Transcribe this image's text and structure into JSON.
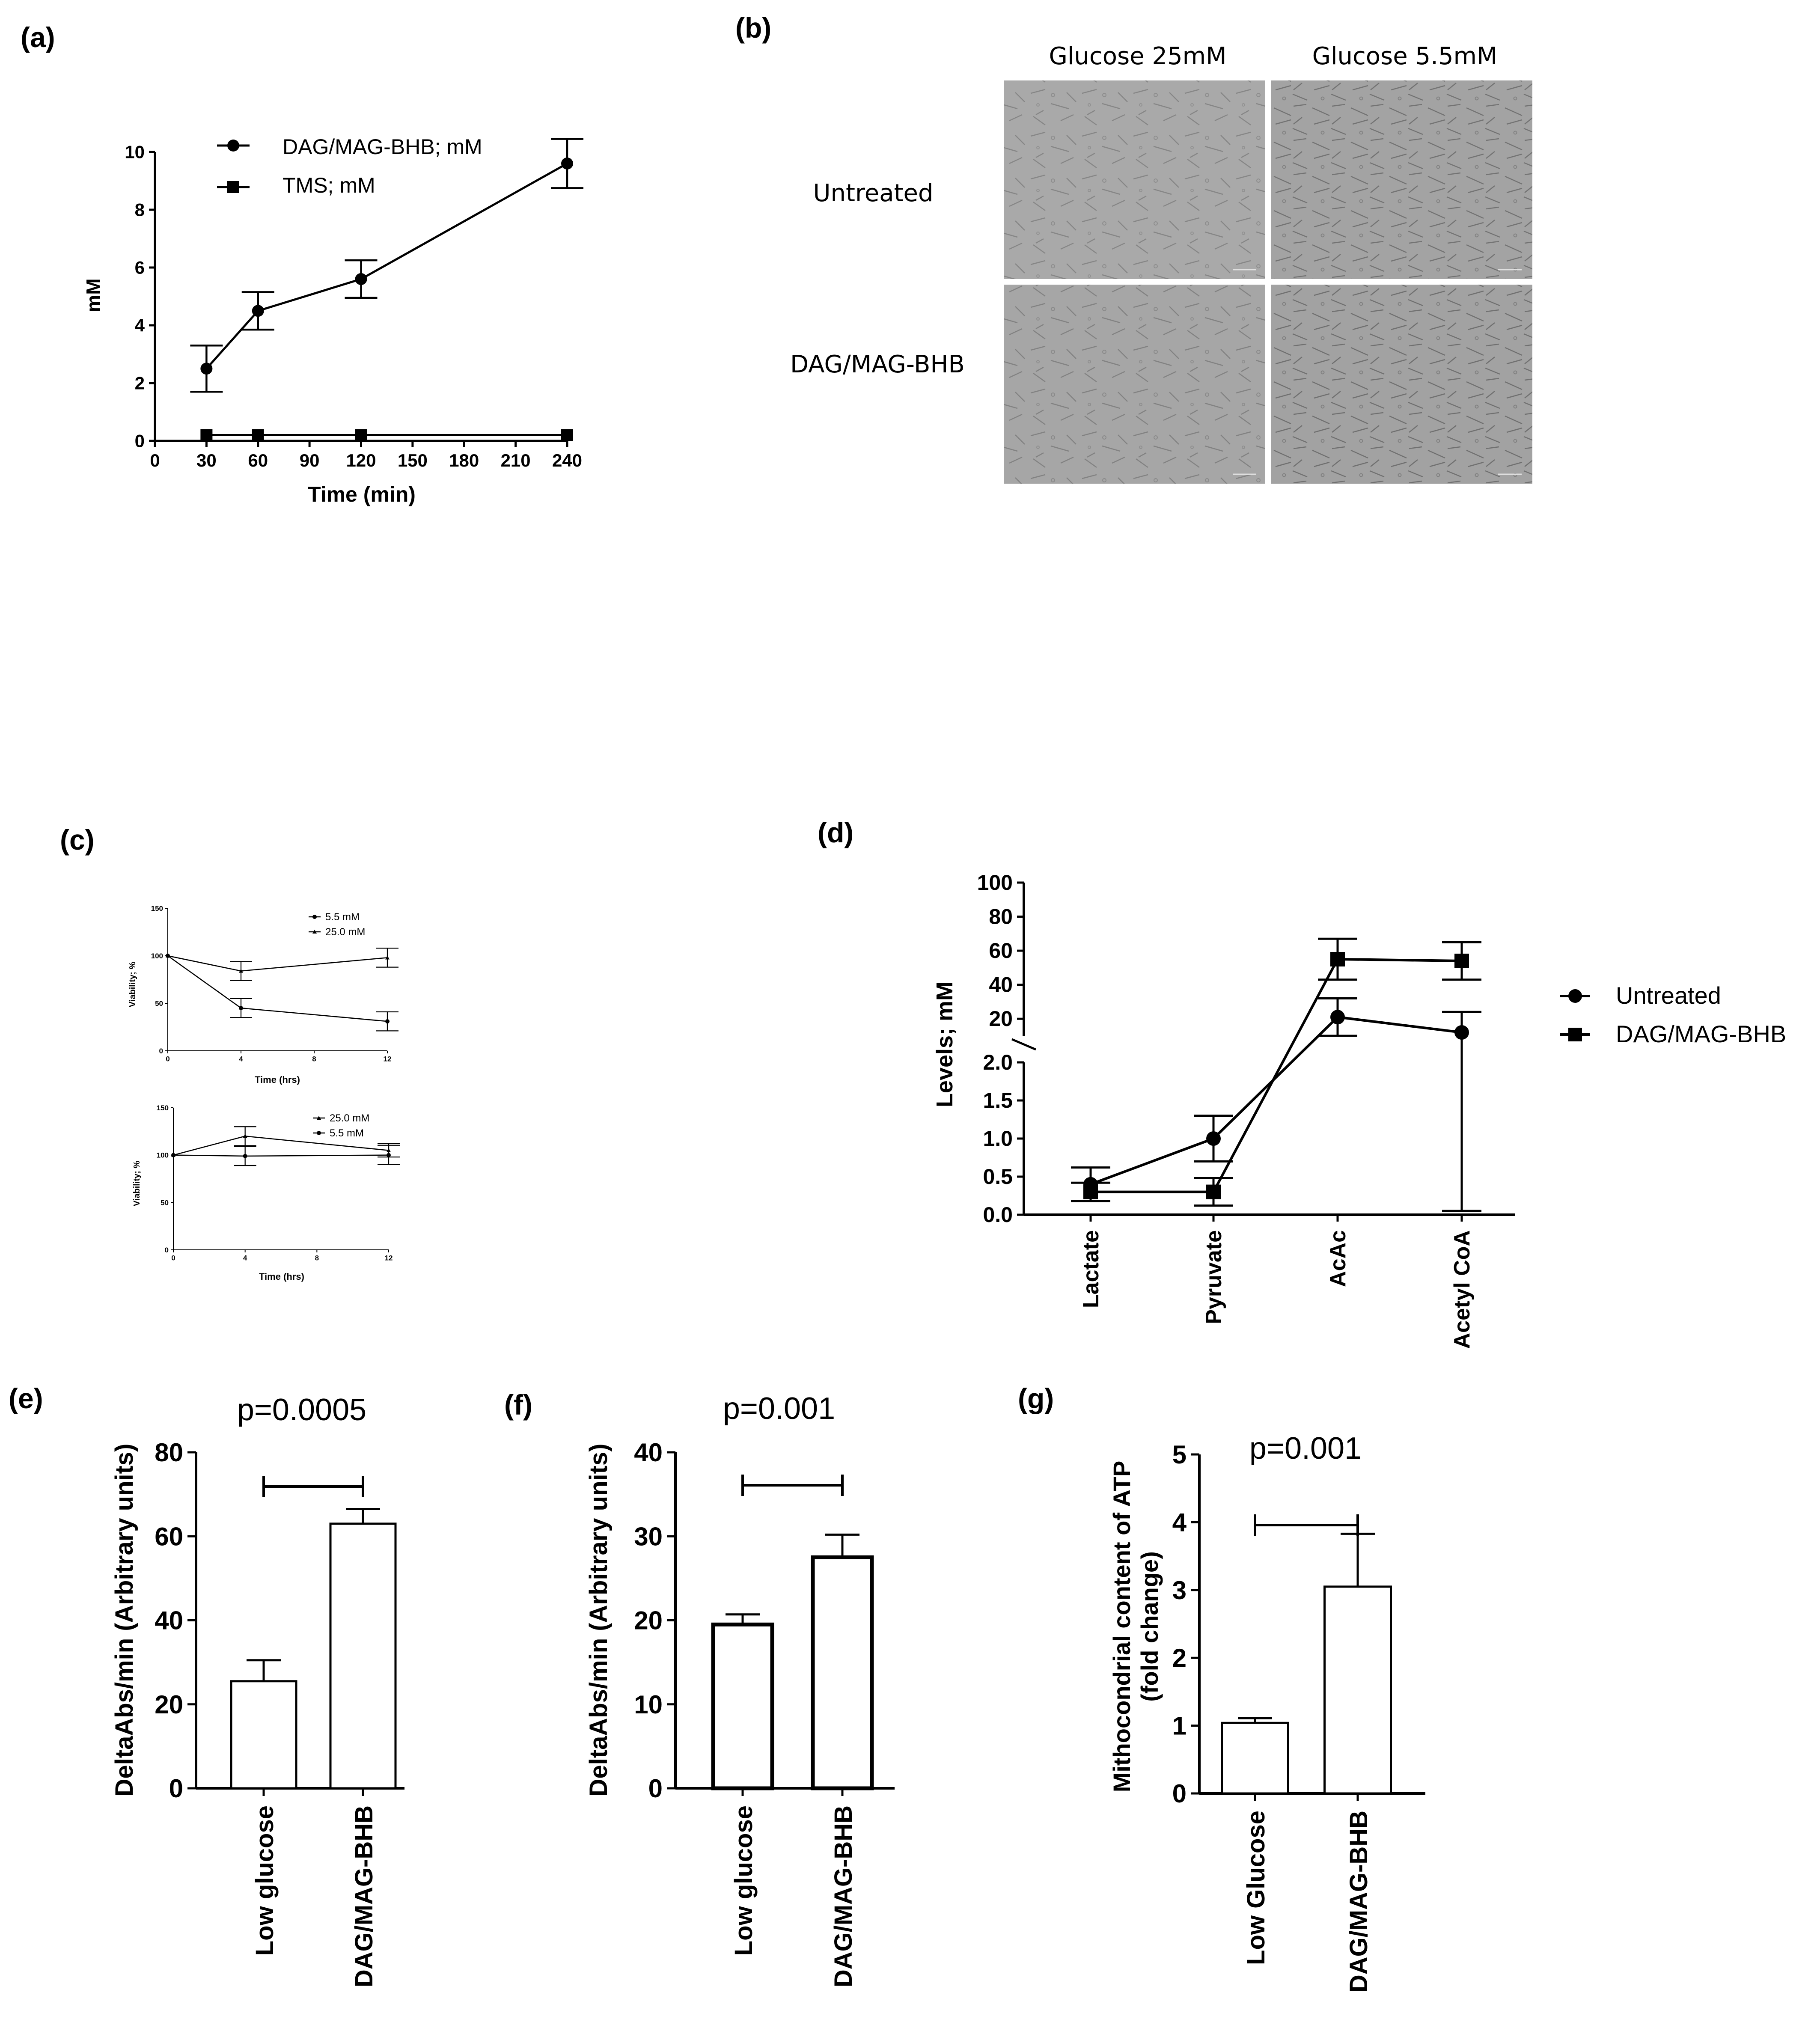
{
  "panel_labels": {
    "a": "(a)",
    "b": "(b)",
    "c": "(c)",
    "d": "(d)",
    "e": "(e)",
    "f": "(f)",
    "g": "(g)"
  },
  "micrographs": {
    "columns": [
      "Glucose 25mM",
      "Glucose 5.5mM"
    ],
    "rows": [
      "Untreated",
      "DAG/MAG-BHB"
    ]
  },
  "chart_data": [
    {
      "id": "a",
      "type": "line",
      "ylabel": "mM",
      "xlabel": "Time (min)",
      "xlim": [
        0,
        240
      ],
      "ylim": [
        0,
        10
      ],
      "x_ticks": [
        0,
        30,
        60,
        90,
        120,
        150,
        180,
        210,
        240
      ],
      "y_ticks": [
        0,
        2,
        4,
        6,
        8,
        10
      ],
      "legend_position": "top-left",
      "series": [
        {
          "name": "DAG/MAG-BHB; mM",
          "marker": "circle",
          "x": [
            30,
            60,
            120,
            240
          ],
          "y": [
            2.5,
            4.5,
            5.6,
            9.6
          ],
          "err": [
            0.8,
            0.65,
            0.65,
            0.85
          ]
        },
        {
          "name": "TMS; mM",
          "marker": "square",
          "x": [
            30,
            60,
            120,
            240
          ],
          "y": [
            0.2,
            0.2,
            0.2,
            0.2
          ],
          "err": [
            0,
            0,
            0,
            0
          ]
        }
      ]
    },
    {
      "id": "c_top",
      "type": "line",
      "ylabel": "Viability; %",
      "xlabel": "Time (hrs)",
      "xlim": [
        0,
        12
      ],
      "ylim": [
        0,
        150
      ],
      "x_ticks": [
        0,
        4,
        8,
        12
      ],
      "y_ticks": [
        0,
        50,
        100,
        150
      ],
      "legend_position": "top-right",
      "series": [
        {
          "name": "5.5  mM",
          "marker": "circle",
          "x": [
            0,
            4,
            12
          ],
          "y": [
            100,
            45,
            31
          ],
          "err": [
            0,
            10,
            10
          ]
        },
        {
          "name": "25.0 mM",
          "marker": "triangle",
          "x": [
            0,
            4,
            12
          ],
          "y": [
            100,
            84,
            98
          ],
          "err": [
            0,
            10,
            10
          ]
        }
      ]
    },
    {
      "id": "c_bottom",
      "type": "line",
      "ylabel": "Viability; %",
      "xlabel": "Time (hrs)",
      "xlim": [
        0,
        12
      ],
      "ylim": [
        0,
        150
      ],
      "x_ticks": [
        0,
        4,
        8,
        12
      ],
      "y_ticks": [
        0,
        50,
        100,
        150
      ],
      "legend_position": "top-right",
      "series": [
        {
          "name": "25.0 mM",
          "marker": "triangle",
          "x": [
            0,
            4,
            12
          ],
          "y": [
            100,
            120,
            105
          ],
          "err": [
            0,
            10,
            7
          ]
        },
        {
          "name": "5.5  mM",
          "marker": "circle",
          "x": [
            0,
            4,
            12
          ],
          "y": [
            100,
            99,
            100
          ],
          "err": [
            0,
            10,
            10
          ]
        }
      ]
    },
    {
      "id": "d",
      "type": "line",
      "ylabel": "Levels; mM",
      "categories": [
        "Lactate",
        "Pyruvate",
        "AcAc",
        "Acetyl CoA"
      ],
      "y_axis_break": true,
      "lower_ylim": [
        0,
        2
      ],
      "lower_ticks": [
        0.0,
        0.5,
        1.0,
        1.5,
        2.0
      ],
      "upper_ylim": [
        10,
        100
      ],
      "upper_ticks": [
        20,
        40,
        60,
        80,
        100
      ],
      "legend_position": "right",
      "series": [
        {
          "name": "Untreated",
          "marker": "circle",
          "values": [
            0.4,
            1.0,
            21,
            12
          ],
          "err": [
            0.22,
            0.3,
            11,
            12
          ]
        },
        {
          "name": "DAG/MAG-BHB",
          "marker": "square",
          "values": [
            0.3,
            0.3,
            55,
            54
          ],
          "err": [
            0.12,
            0.18,
            12,
            11
          ]
        }
      ]
    },
    {
      "id": "e",
      "type": "bar",
      "ylabel": "DeltaAbs/min (Arbitrary units)",
      "categories": [
        "Low glucose",
        "DAG/MAG-BHB"
      ],
      "values": [
        25.5,
        63
      ],
      "err": [
        5,
        3.5
      ],
      "ylim": [
        0,
        80
      ],
      "y_ticks": [
        0,
        20,
        40,
        60,
        80
      ],
      "annotation": "p=0.0005"
    },
    {
      "id": "f",
      "type": "bar",
      "ylabel": "DeltaAbs/min (Arbitrary units)",
      "categories": [
        "Low glucose",
        "DAG/MAG-BHB"
      ],
      "values": [
        19.5,
        27.5
      ],
      "err": [
        1.2,
        2.7
      ],
      "ylim": [
        0,
        40
      ],
      "y_ticks": [
        0,
        10,
        20,
        30,
        40
      ],
      "annotation": "p=0.001"
    },
    {
      "id": "g",
      "type": "bar",
      "ylabel": "Mithocondrial content of ATP (fold change)",
      "ylabel_lines": [
        "Mithocondrial content of ATP",
        "(fold change)"
      ],
      "categories": [
        "Low Glucose",
        "DAG/MAG-BHB"
      ],
      "values": [
        1.04,
        3.05
      ],
      "err": [
        0.07,
        0.78
      ],
      "ylim": [
        0,
        5
      ],
      "y_ticks": [
        0,
        1,
        2,
        3,
        4,
        5
      ],
      "annotation": "p=0.001"
    }
  ]
}
